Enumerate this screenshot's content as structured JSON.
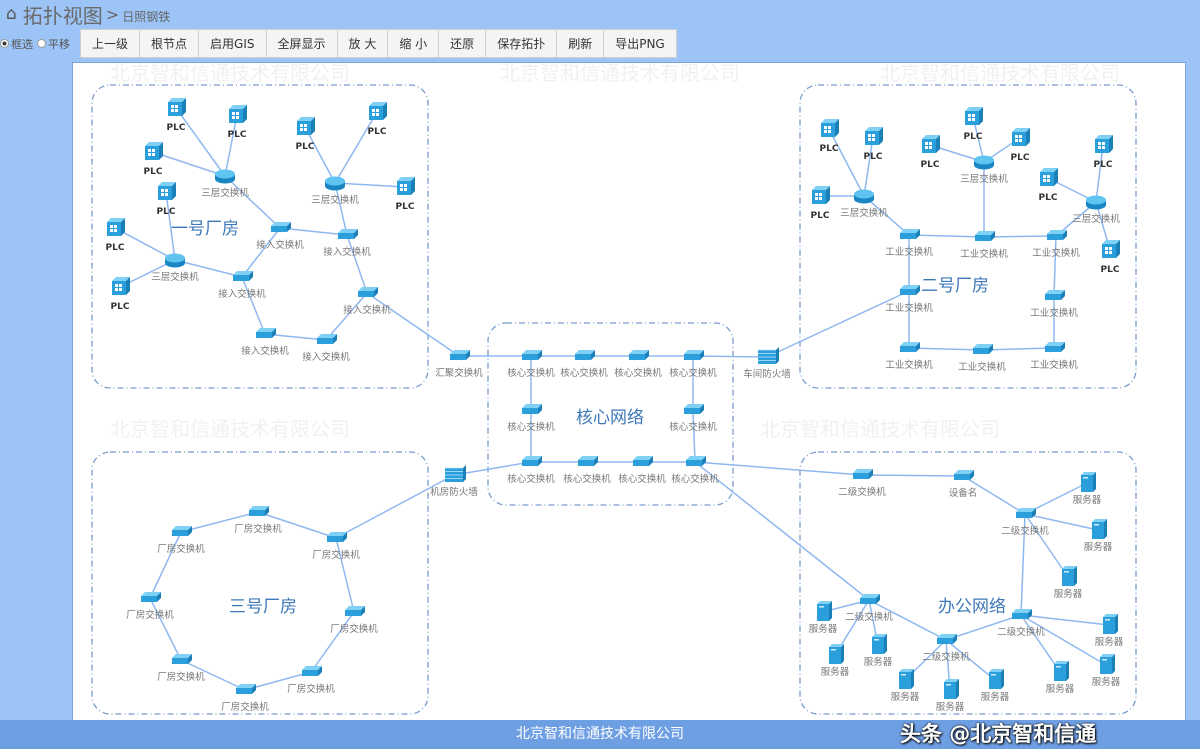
{
  "header": {
    "home_icon": "home-icon",
    "title": "拓扑视图",
    "separator": ">",
    "subtitle": "日照钢铁"
  },
  "toolbar": {
    "modes": [
      {
        "label": "框选",
        "selected": true
      },
      {
        "label": "平移",
        "selected": false
      }
    ],
    "buttons": [
      "上一级",
      "根节点",
      "启用GIS",
      "全屏显示",
      "放 大",
      "缩 小",
      "还原",
      "保存拓扑",
      "刷新",
      "导出PNG"
    ]
  },
  "colors": {
    "link": "#8fb8f0",
    "group_border": "#7b9ccc",
    "device": "#2a9fdc",
    "group_title": "#3d78b8"
  },
  "watermark": "北京智和信通技术有限公司",
  "footer": "北京智和信通技术有限公司",
  "credit": "头条 @北京智和信通",
  "diagram": {
    "groups": [
      {
        "id": "g1",
        "title": "一号厂房"
      },
      {
        "id": "core",
        "title": "核心网络"
      },
      {
        "id": "g2",
        "title": "二号厂房"
      },
      {
        "id": "g3",
        "title": "三号厂房"
      },
      {
        "id": "office",
        "title": "办公网络"
      }
    ],
    "nodes": [
      {
        "id": "a_l3a",
        "type": "router",
        "label": "三层交换机"
      },
      {
        "id": "a_p1",
        "type": "plc",
        "label": "PLC"
      },
      {
        "id": "a_p2",
        "type": "plc",
        "label": "PLC"
      },
      {
        "id": "a_p3",
        "type": "plc",
        "label": "PLC"
      },
      {
        "id": "a_l3b",
        "type": "router",
        "label": "三层交换机"
      },
      {
        "id": "a_p4",
        "type": "plc",
        "label": "PLC"
      },
      {
        "id": "a_p5",
        "type": "plc",
        "label": "PLC"
      },
      {
        "id": "a_p6",
        "type": "plc",
        "label": "PLC"
      },
      {
        "id": "a_l3c",
        "type": "router",
        "label": "三层交换机"
      },
      {
        "id": "a_p7",
        "type": "plc",
        "label": "PLC"
      },
      {
        "id": "a_p8",
        "type": "plc",
        "label": "PLC"
      },
      {
        "id": "a_p9",
        "type": "plc",
        "label": "PLC"
      },
      {
        "id": "a_s1",
        "type": "switch",
        "label": "接入交换机"
      },
      {
        "id": "a_s2",
        "type": "switch",
        "label": "接入交换机"
      },
      {
        "id": "a_s3",
        "type": "switch",
        "label": "接入交换机"
      },
      {
        "id": "a_s4",
        "type": "switch",
        "label": "接入交换机"
      },
      {
        "id": "a_s5",
        "type": "switch",
        "label": "接入交换机"
      },
      {
        "id": "a_s6",
        "type": "switch",
        "label": "接入交换机"
      },
      {
        "id": "agg",
        "type": "switch",
        "label": "汇聚交换机"
      },
      {
        "id": "c1",
        "type": "switch",
        "label": "核心交换机"
      },
      {
        "id": "c2",
        "type": "switch",
        "label": "核心交换机"
      },
      {
        "id": "c3",
        "type": "switch",
        "label": "核心交换机"
      },
      {
        "id": "c4",
        "type": "switch",
        "label": "核心交换机"
      },
      {
        "id": "c5",
        "type": "switch",
        "label": "核心交换机"
      },
      {
        "id": "c6",
        "type": "switch",
        "label": "核心交换机"
      },
      {
        "id": "c7",
        "type": "switch",
        "label": "核心交换机"
      },
      {
        "id": "c8",
        "type": "switch",
        "label": "核心交换机"
      },
      {
        "id": "c9",
        "type": "switch",
        "label": "核心交换机"
      },
      {
        "id": "c10",
        "type": "switch",
        "label": "核心交换机"
      },
      {
        "id": "fw1",
        "type": "firewall",
        "label": "车间防火墙"
      },
      {
        "id": "fw2",
        "type": "firewall",
        "label": "机房防火墙"
      },
      {
        "id": "b_l3a",
        "type": "router",
        "label": "三层交换机"
      },
      {
        "id": "b_p1",
        "type": "plc",
        "label": "PLC"
      },
      {
        "id": "b_p2",
        "type": "plc",
        "label": "PLC"
      },
      {
        "id": "b_p3",
        "type": "plc",
        "label": "PLC"
      },
      {
        "id": "b_l3b",
        "type": "router",
        "label": "三层交换机"
      },
      {
        "id": "b_p4",
        "type": "plc",
        "label": "PLC"
      },
      {
        "id": "b_p5",
        "type": "plc",
        "label": "PLC"
      },
      {
        "id": "b_p6",
        "type": "plc",
        "label": "PLC"
      },
      {
        "id": "b_l3c",
        "type": "router",
        "label": "三层交换机"
      },
      {
        "id": "b_p7",
        "type": "plc",
        "label": "PLC"
      },
      {
        "id": "b_p8",
        "type": "plc",
        "label": "PLC"
      },
      {
        "id": "b_p9",
        "type": "plc",
        "label": "PLC"
      },
      {
        "id": "b_w1",
        "type": "switch",
        "label": "工业交换机"
      },
      {
        "id": "b_w2",
        "type": "switch",
        "label": "工业交换机"
      },
      {
        "id": "b_w3",
        "type": "switch",
        "label": "工业交换机"
      },
      {
        "id": "b_w4",
        "type": "switch",
        "label": "工业交换机"
      },
      {
        "id": "b_w5",
        "type": "switch",
        "label": "工业交换机"
      },
      {
        "id": "b_w6",
        "type": "switch",
        "label": "工业交换机"
      },
      {
        "id": "b_w7",
        "type": "switch",
        "label": "工业交换机"
      },
      {
        "id": "b_w8",
        "type": "switch",
        "label": "工业交换机"
      },
      {
        "id": "r1",
        "type": "switch",
        "label": "厂房交换机"
      },
      {
        "id": "r2",
        "type": "switch",
        "label": "厂房交换机"
      },
      {
        "id": "r3",
        "type": "switch",
        "label": "厂房交换机"
      },
      {
        "id": "r4",
        "type": "switch",
        "label": "厂房交换机"
      },
      {
        "id": "r5",
        "type": "switch",
        "label": "厂房交换机"
      },
      {
        "id": "r6",
        "type": "switch",
        "label": "厂房交换机"
      },
      {
        "id": "r7",
        "type": "switch",
        "label": "厂房交换机"
      },
      {
        "id": "r8",
        "type": "switch",
        "label": "厂房交换机"
      },
      {
        "id": "o_s1",
        "type": "switch",
        "label": "二级交换机"
      },
      {
        "id": "o_dev",
        "type": "switch",
        "label": "设备名"
      },
      {
        "id": "o_s2",
        "type": "switch",
        "label": "二级交换机"
      },
      {
        "id": "o_v1",
        "type": "server",
        "label": "服务器"
      },
      {
        "id": "o_v2",
        "type": "server",
        "label": "服务器"
      },
      {
        "id": "o_v3",
        "type": "server",
        "label": "服务器"
      },
      {
        "id": "o_s3",
        "type": "switch",
        "label": "二级交换机"
      },
      {
        "id": "o_v4",
        "type": "server",
        "label": "服务器"
      },
      {
        "id": "o_v5",
        "type": "server",
        "label": "服务器"
      },
      {
        "id": "o_v6",
        "type": "server",
        "label": "服务器"
      },
      {
        "id": "o_s4",
        "type": "switch",
        "label": "二级交换机"
      },
      {
        "id": "o_v7",
        "type": "server",
        "label": "服务器"
      },
      {
        "id": "o_v8",
        "type": "server",
        "label": "服务器"
      },
      {
        "id": "o_v9",
        "type": "server",
        "label": "服务器"
      },
      {
        "id": "o_s5",
        "type": "switch",
        "label": "二级交换机"
      },
      {
        "id": "o_v10",
        "type": "server",
        "label": "服务器"
      },
      {
        "id": "o_v11",
        "type": "server",
        "label": "服务器"
      },
      {
        "id": "o_v12",
        "type": "server",
        "label": "服务器"
      }
    ],
    "edges": [
      [
        "a_l3a",
        "a_p1"
      ],
      [
        "a_l3a",
        "a_p2"
      ],
      [
        "a_l3a",
        "a_p3"
      ],
      [
        "a_l3a",
        "a_s1"
      ],
      [
        "a_l3b",
        "a_p4"
      ],
      [
        "a_l3b",
        "a_p5"
      ],
      [
        "a_l3b",
        "a_p6"
      ],
      [
        "a_l3b",
        "a_s2"
      ],
      [
        "a_l3c",
        "a_p7"
      ],
      [
        "a_l3c",
        "a_p8"
      ],
      [
        "a_l3c",
        "a_p9"
      ],
      [
        "a_l3c",
        "a_s3"
      ],
      [
        "a_s1",
        "a_s2"
      ],
      [
        "a_s1",
        "a_s3"
      ],
      [
        "a_s2",
        "a_s4"
      ],
      [
        "a_s3",
        "a_s5"
      ],
      [
        "a_s5",
        "a_s6"
      ],
      [
        "a_s6",
        "a_s4"
      ],
      [
        "a_s4",
        "agg"
      ],
      [
        "agg",
        "c1"
      ],
      [
        "c1",
        "c2"
      ],
      [
        "c2",
        "c3"
      ],
      [
        "c3",
        "c4"
      ],
      [
        "c4",
        "fw1"
      ],
      [
        "c1",
        "c5"
      ],
      [
        "c5",
        "c7"
      ],
      [
        "c4",
        "c6"
      ],
      [
        "c6",
        "c10"
      ],
      [
        "c7",
        "c8"
      ],
      [
        "c8",
        "c9"
      ],
      [
        "c9",
        "c10"
      ],
      [
        "c7",
        "fw2"
      ],
      [
        "c10",
        "o_s1"
      ],
      [
        "c10",
        "o_s3"
      ],
      [
        "fw1",
        "b_w4"
      ],
      [
        "b_l3a",
        "b_p1"
      ],
      [
        "b_l3a",
        "b_p2"
      ],
      [
        "b_l3a",
        "b_p3"
      ],
      [
        "b_l3a",
        "b_w1"
      ],
      [
        "b_l3b",
        "b_p4"
      ],
      [
        "b_l3b",
        "b_p5"
      ],
      [
        "b_l3b",
        "b_p6"
      ],
      [
        "b_l3b",
        "b_w2"
      ],
      [
        "b_l3c",
        "b_p7"
      ],
      [
        "b_l3c",
        "b_p8"
      ],
      [
        "b_l3c",
        "b_p9"
      ],
      [
        "b_l3c",
        "b_w3"
      ],
      [
        "b_w1",
        "b_w2"
      ],
      [
        "b_w2",
        "b_w3"
      ],
      [
        "b_w1",
        "b_w4"
      ],
      [
        "b_w4",
        "b_w6"
      ],
      [
        "b_w6",
        "b_w7"
      ],
      [
        "b_w7",
        "b_w8"
      ],
      [
        "b_w8",
        "b_w5"
      ],
      [
        "b_w5",
        "b_w3"
      ],
      [
        "r1",
        "r2"
      ],
      [
        "r2",
        "r3"
      ],
      [
        "r3",
        "r4"
      ],
      [
        "r4",
        "r5"
      ],
      [
        "r5",
        "r6"
      ],
      [
        "r6",
        "r7"
      ],
      [
        "r7",
        "r8"
      ],
      [
        "r8",
        "r1"
      ],
      [
        "r2",
        "fw2"
      ],
      [
        "o_s1",
        "o_dev"
      ],
      [
        "o_dev",
        "o_s2"
      ],
      [
        "o_s2",
        "o_v1"
      ],
      [
        "o_s2",
        "o_v2"
      ],
      [
        "o_s2",
        "o_v3"
      ],
      [
        "o_s2",
        "o_s4"
      ],
      [
        "o_s3",
        "o_v4"
      ],
      [
        "o_s3",
        "o_v5"
      ],
      [
        "o_s3",
        "o_v6"
      ],
      [
        "o_s3",
        "o_s5"
      ],
      [
        "o_s4",
        "o_v7"
      ],
      [
        "o_s4",
        "o_v8"
      ],
      [
        "o_s4",
        "o_v9"
      ],
      [
        "o_s4",
        "o_s5"
      ],
      [
        "o_s5",
        "o_v10"
      ],
      [
        "o_s5",
        "o_v11"
      ],
      [
        "o_s5",
        "o_v12"
      ]
    ]
  }
}
